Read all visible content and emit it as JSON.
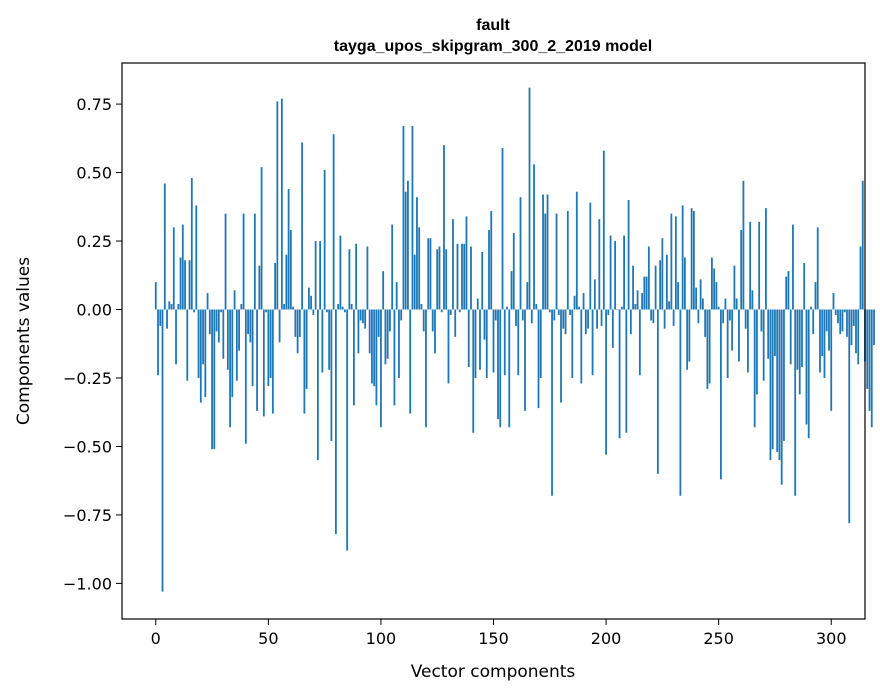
{
  "chart_data": {
    "type": "bar",
    "title": "fault",
    "subtitle": "tayga_upos_skipgram_300_2_2019 model",
    "xlabel": "Vector components",
    "ylabel": "Components values",
    "xlim": [
      -15,
      315
    ],
    "ylim": [
      -1.13,
      0.9
    ],
    "xticks": [
      0,
      50,
      100,
      150,
      200,
      250,
      300
    ],
    "yticks": [
      -1.0,
      -0.75,
      -0.5,
      -0.25,
      0.0,
      0.25,
      0.5,
      0.75
    ],
    "ytick_labels": [
      "−1.00",
      "−0.75",
      "−0.50",
      "−0.25",
      "0.00",
      "0.25",
      "0.50",
      "0.75"
    ],
    "grid": false,
    "bar_color": "#1f77b4",
    "series": [
      {
        "values": [
          0.1,
          -0.24,
          -0.06,
          -1.03,
          0.46,
          -0.07,
          0.03,
          0.02,
          0.3,
          -0.2,
          0.02,
          0.19,
          0.31,
          0.18,
          -0.26,
          0.18,
          0.48,
          -0.01,
          0.38,
          -0.25,
          -0.34,
          -0.2,
          -0.32,
          0.06,
          -0.09,
          -0.51,
          -0.51,
          -0.08,
          -0.12,
          -0.01,
          -0.18,
          0.35,
          -0.22,
          -0.43,
          -0.32,
          0.07,
          -0.26,
          -0.15,
          0.02,
          0.35,
          -0.49,
          -0.09,
          -0.12,
          -0.28,
          0.35,
          -0.37,
          0.16,
          0.52,
          -0.39,
          -0.01,
          -0.28,
          -0.25,
          -0.38,
          0.17,
          0.76,
          -0.12,
          0.77,
          0.02,
          0.2,
          0.44,
          0.29,
          0.01,
          -0.1,
          -0.16,
          -0.1,
          0.61,
          -0.38,
          -0.29,
          0.08,
          0.05,
          -0.02,
          0.25,
          -0.55,
          0.25,
          -0.23,
          0.51,
          -0.01,
          -0.22,
          -0.48,
          0.64,
          -0.82,
          0.02,
          0.27,
          0.01,
          -0.01,
          -0.88,
          0.22,
          0.02,
          -0.35,
          0.24,
          -0.16,
          -0.04,
          -0.05,
          -0.07,
          0.23,
          -0.16,
          -0.27,
          -0.28,
          -0.35,
          -0.1,
          -0.43,
          0.14,
          -0.2,
          -0.18,
          -0.08,
          0.31,
          -0.35,
          0.1,
          -0.25,
          -0.04,
          0.67,
          0.43,
          0.47,
          -0.38,
          0.67,
          0.2,
          0.41,
          0.3,
          0.02,
          -0.08,
          -0.43,
          0.26,
          0.26,
          -0.08,
          -0.16,
          0.22,
          0.23,
          -0.01,
          0.6,
          0.22,
          -0.27,
          -0.02,
          0.33,
          -0.1,
          0.24,
          -0.01,
          0.24,
          0.24,
          0.34,
          -0.21,
          0.23,
          -0.45,
          -0.25,
          0.04,
          -0.22,
          0.21,
          -0.11,
          -0.25,
          0.29,
          0.36,
          -0.23,
          -0.04,
          -0.4,
          -0.43,
          0.59,
          -0.24,
          0.01,
          -0.43,
          0.14,
          0.28,
          -0.06,
          -0.24,
          0.41,
          -0.04,
          -0.37,
          0.1,
          0.81,
          -0.05,
          0.53,
          0.02,
          -0.36,
          -0.25,
          0.42,
          0.35,
          0.42,
          -0.01,
          -0.68,
          -0.04,
          0.35,
          -0.02,
          -0.34,
          -0.07,
          -0.09,
          0.36,
          -0.02,
          -0.25,
          0.05,
          0.43,
          0.01,
          -0.27,
          0.06,
          -0.09,
          -0.07,
          0.39,
          -0.24,
          0.11,
          -0.07,
          0.33,
          -0.06,
          0.58,
          -0.53,
          -0.02,
          0.27,
          -0.14,
          0.25,
          0.0,
          -0.47,
          0.01,
          0.27,
          -0.45,
          0.4,
          -0.09,
          0.16,
          0.02,
          0.07,
          -0.24,
          0.06,
          0.12,
          0.12,
          0.23,
          -0.04,
          -0.05,
          0.16,
          -0.6,
          0.18,
          0.26,
          -0.07,
          0.2,
          0.03,
          0.35,
          -0.06,
          0.34,
          0.1,
          -0.68,
          0.38,
          0.19,
          -0.22,
          -0.19,
          0.37,
          0.36,
          0.08,
          -0.05,
          0.11,
          0.04,
          -0.1,
          -0.29,
          -0.27,
          0.19,
          0.15,
          0.1,
          0.01,
          -0.62,
          -0.05,
          0.04,
          -0.25,
          -0.04,
          -0.15,
          0.16,
          0.04,
          -0.19,
          0.29,
          0.47,
          -0.07,
          -0.23,
          0.32,
          0.07,
          -0.43,
          -0.31,
          0.32,
          -0.08,
          -0.26,
          0.37,
          -0.18,
          -0.55,
          -0.51,
          -0.17,
          -0.52,
          -0.55,
          -0.64,
          -0.48,
          0.12,
          0.14,
          -0.2,
          0.31,
          -0.68,
          -0.22,
          -0.31,
          -0.21,
          0.17,
          -0.42,
          -0.47,
          0.01,
          -0.09,
          0.1,
          0.3,
          -0.23,
          -0.17,
          -0.25,
          -0.08,
          -0.15,
          -0.37,
          0.06,
          -0.02,
          -0.05,
          -0.09,
          -0.08,
          -0.01,
          -0.1,
          -0.78,
          -0.13,
          -0.06,
          -0.16,
          -0.2,
          0.23,
          0.47,
          -0.19,
          -0.29,
          -0.37,
          -0.43,
          -0.13
        ]
      }
    ]
  }
}
